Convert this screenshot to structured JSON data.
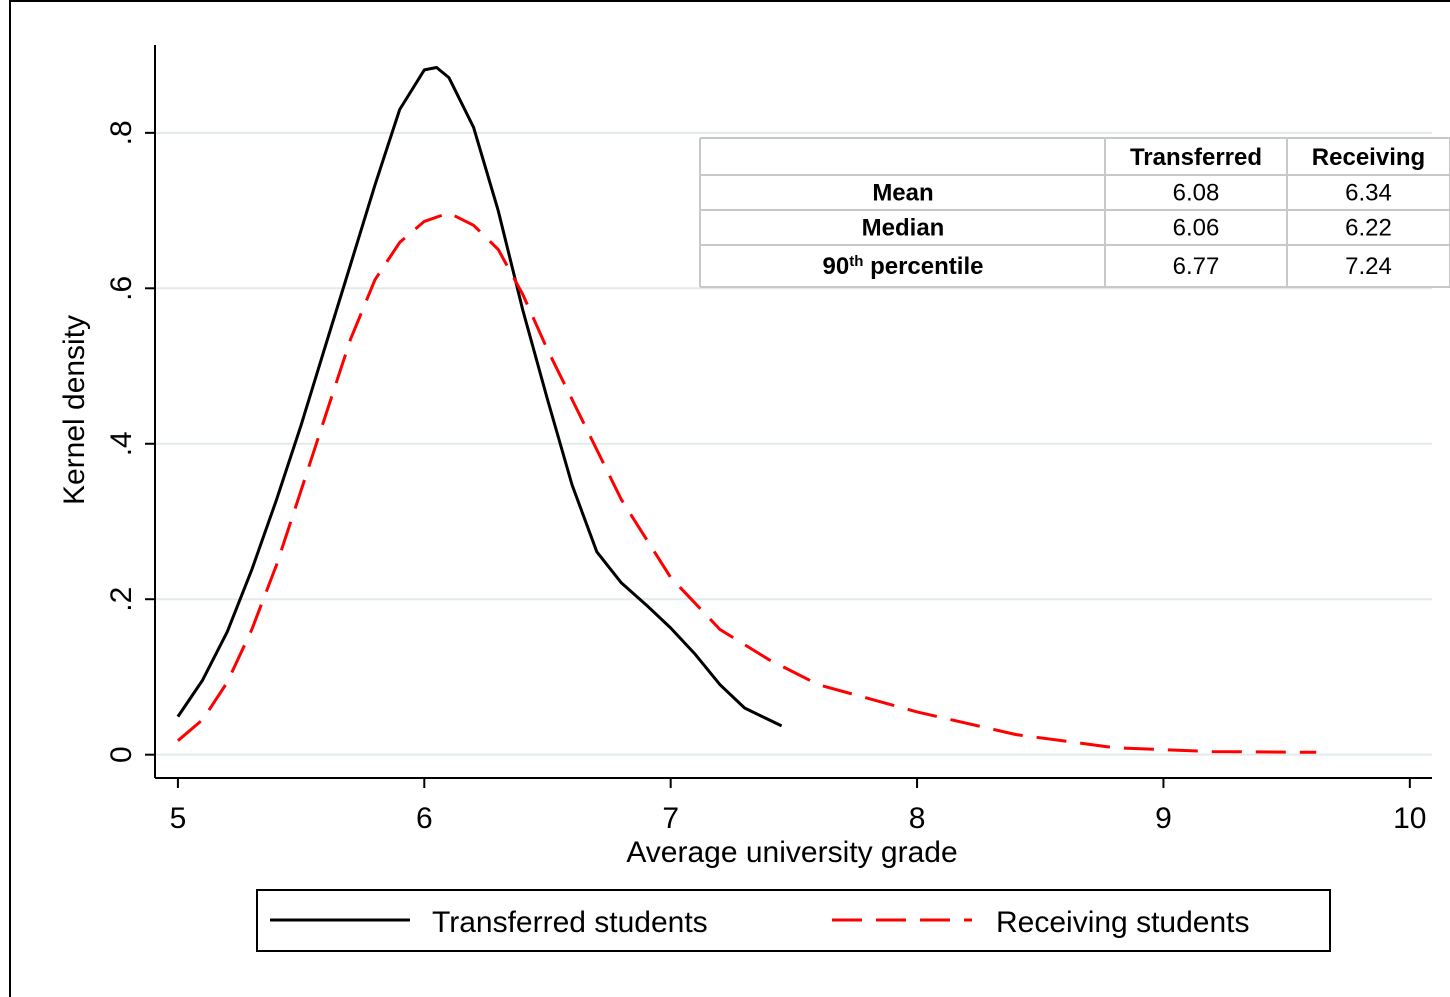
{
  "chart_data": {
    "type": "line",
    "x_label": "Average university grade",
    "y_label": "Kernel density",
    "xlim": [
      4.907,
      10.09
    ],
    "ylim": [
      -0.03,
      0.913
    ],
    "xticks": [
      5,
      6,
      7,
      8,
      9,
      10
    ],
    "yticks": [
      0,
      {
        "value": 0.2,
        "label": ".2"
      },
      {
        "value": 0.4,
        "label": ".4"
      },
      {
        "value": 0.6,
        "label": ".6"
      },
      {
        "value": 0.8,
        "label": ".8"
      }
    ],
    "grid": true,
    "legend_position": "bottom",
    "series": [
      {
        "name": "Transferred students",
        "color": "#000000",
        "line_style": "solid",
        "x": [
          5,
          5.1,
          5.2,
          5.3,
          5.4,
          5.5,
          5.6,
          5.7,
          5.8,
          5.9,
          6.0,
          6.05,
          6.1,
          6.2,
          6.3,
          6.4,
          6.5,
          6.6,
          6.7,
          6.8,
          6.9,
          7.0,
          7.1,
          7.2,
          7.3,
          7.45
        ],
        "values": [
          0.049,
          0.096,
          0.158,
          0.238,
          0.328,
          0.424,
          0.527,
          0.63,
          0.733,
          0.83,
          0.881,
          0.884,
          0.871,
          0.807,
          0.7,
          0.572,
          0.457,
          0.347,
          0.261,
          0.221,
          0.193,
          0.163,
          0.129,
          0.09,
          0.06,
          0.037
        ]
      },
      {
        "name": "Receiving students",
        "color": "#ff0000",
        "line_style": "dashed",
        "x": [
          5,
          5.1,
          5.2,
          5.3,
          5.4,
          5.5,
          5.6,
          5.7,
          5.8,
          5.9,
          6.0,
          6.1,
          6.2,
          6.3,
          6.4,
          6.5,
          6.6,
          6.8,
          7.0,
          7.2,
          7.4,
          7.6,
          8.0,
          8.4,
          8.8,
          9.2,
          9.62
        ],
        "values": [
          0.018,
          0.045,
          0.093,
          0.161,
          0.244,
          0.34,
          0.437,
          0.534,
          0.611,
          0.659,
          0.686,
          0.697,
          0.681,
          0.65,
          0.592,
          0.521,
          0.457,
          0.328,
          0.228,
          0.161,
          0.122,
          0.09,
          0.055,
          0.026,
          0.009,
          0.004,
          0.003
        ]
      }
    ],
    "table": {
      "header": [
        "Transferred",
        "Receiving"
      ],
      "rows": [
        {
          "label": "Mean",
          "values": [
            6.08,
            6.34
          ]
        },
        {
          "label": "Median",
          "values": [
            6.06,
            6.22
          ]
        },
        {
          "label_parts": [
            "90",
            "th",
            " percentile"
          ],
          "values": [
            6.77,
            7.24
          ]
        }
      ]
    }
  }
}
